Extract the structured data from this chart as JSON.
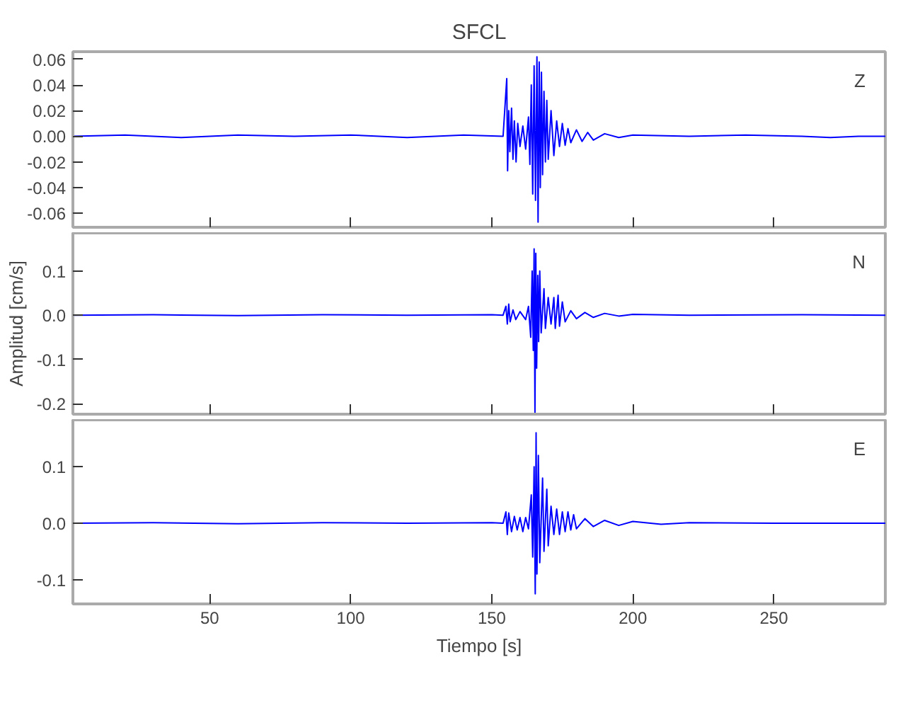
{
  "chart_data": [
    {
      "type": "line",
      "title": "SFCL",
      "annotations": [
        "Z"
      ],
      "tick_labels": "y",
      "grid": false,
      "color": "#0000ff",
      "xlim": [
        1.5,
        289.5
      ],
      "xticks": [
        50,
        100,
        150,
        200,
        250
      ],
      "ylim": [
        -0.071,
        0.066
      ],
      "yticks": [
        {
          "value": -0.06,
          "label": "-0.06"
        },
        {
          "value": -0.04,
          "label": "-0.04"
        },
        {
          "value": -0.02,
          "label": "-0.02"
        },
        {
          "value": 0,
          "label": "0.00"
        },
        {
          "value": 0.02,
          "label": "0.02"
        },
        {
          "value": 0.04,
          "label": "0.04"
        },
        {
          "value": 0.06,
          "label": "0.06"
        }
      ],
      "x": [
        1.5,
        20,
        40,
        60,
        80,
        100,
        120,
        140,
        154,
        155.3,
        155.6,
        156,
        156.4,
        157,
        157.5,
        158,
        158.6,
        159.2,
        160,
        161,
        162,
        163,
        163.5,
        164,
        164.5,
        165,
        165.5,
        166,
        166.4,
        166.8,
        167.2,
        167.6,
        168,
        168.5,
        169,
        169.5,
        170,
        171,
        172,
        173,
        174,
        175,
        176,
        177,
        178,
        180,
        182,
        184,
        186,
        190,
        195,
        200,
        220,
        240,
        260,
        270,
        280,
        289.5
      ],
      "values": [
        0,
        0.001,
        -0.001,
        0.001,
        0,
        0.001,
        -0.001,
        0.001,
        0,
        0.045,
        -0.027,
        0.02,
        -0.012,
        0.022,
        -0.018,
        0.012,
        -0.02,
        0.01,
        -0.008,
        0.008,
        -0.01,
        0.015,
        -0.022,
        0.04,
        -0.045,
        0.055,
        -0.05,
        0.062,
        -0.067,
        0.058,
        -0.04,
        0.05,
        -0.03,
        0.035,
        -0.02,
        0.028,
        -0.018,
        0.02,
        -0.015,
        0.012,
        -0.008,
        0.01,
        -0.007,
        0.006,
        -0.005,
        0.005,
        -0.004,
        0.003,
        -0.003,
        0.002,
        -0.001,
        0.001,
        0,
        0.001,
        0,
        -0.001,
        0,
        0
      ]
    },
    {
      "type": "line",
      "ylabel": "Amplitud [cm/s]",
      "annotations": [
        "N"
      ],
      "tick_labels": "y",
      "grid": false,
      "color": "#0000ff",
      "xlim": [
        1.5,
        289.5
      ],
      "xticks": [
        50,
        100,
        150,
        200,
        250
      ],
      "ylim": [
        -0.224,
        0.186
      ],
      "yticks": [
        {
          "value": -0.2,
          "label": "-0.2"
        },
        {
          "value": -0.1,
          "label": "-0.1"
        },
        {
          "value": 0,
          "label": "0.0"
        },
        {
          "value": 0.1,
          "label": "0.1"
        }
      ],
      "x": [
        1.5,
        30,
        60,
        90,
        120,
        150,
        154,
        155,
        155.5,
        156,
        156.5,
        157.5,
        158.5,
        160,
        162,
        163,
        163.8,
        164.3,
        164.7,
        165,
        165.3,
        165.6,
        165.9,
        166.3,
        166.6,
        167,
        167.5,
        168.5,
        169,
        170,
        171,
        172,
        172.5,
        173.5,
        174,
        175,
        176,
        178,
        180,
        183,
        186,
        190,
        195,
        200,
        220,
        260,
        289.5
      ],
      "values": [
        0,
        0.001,
        -0.001,
        0.001,
        0,
        0.001,
        0,
        0.02,
        -0.02,
        0.025,
        -0.015,
        0.012,
        -0.01,
        0.008,
        -0.01,
        0.02,
        -0.05,
        0.1,
        -0.08,
        0.15,
        -0.22,
        0.14,
        -0.12,
        0.09,
        -0.06,
        0.1,
        -0.04,
        0.06,
        -0.03,
        0.04,
        -0.02,
        0.04,
        -0.03,
        0.045,
        -0.025,
        0.03,
        -0.015,
        0.01,
        -0.008,
        0.006,
        -0.005,
        0.004,
        -0.002,
        0.002,
        0,
        0.001,
        0
      ]
    },
    {
      "type": "line",
      "xlabel": "Tiempo [s]",
      "annotations": [
        "E"
      ],
      "grid": false,
      "color": "#0000ff",
      "xlim": [
        1.5,
        289.5
      ],
      "xticks": [
        50,
        100,
        150,
        200,
        250
      ],
      "ylim": [
        -0.143,
        0.183
      ],
      "yticks": [
        {
          "value": -0.1,
          "label": "-0.1"
        },
        {
          "value": 0,
          "label": "0.0"
        },
        {
          "value": 0.1,
          "label": "0.1"
        }
      ],
      "x": [
        1.5,
        30,
        60,
        90,
        120,
        150,
        154,
        155,
        155.5,
        156,
        157,
        158,
        159,
        160,
        161,
        162,
        163,
        164,
        164.5,
        165,
        165.4,
        165.7,
        166,
        166.5,
        167,
        168,
        168.5,
        169.5,
        170,
        171,
        172,
        173,
        174,
        175,
        176,
        177,
        178,
        179,
        180,
        183,
        186,
        190,
        195,
        200,
        210,
        220,
        250,
        289.5
      ],
      "values": [
        0,
        0.001,
        -0.001,
        0.001,
        0,
        0.001,
        0,
        0.02,
        -0.02,
        0.018,
        -0.015,
        0.012,
        -0.012,
        0.01,
        -0.015,
        0.01,
        -0.01,
        0.05,
        -0.06,
        0.1,
        -0.125,
        0.16,
        -0.09,
        0.12,
        -0.07,
        0.08,
        -0.05,
        0.06,
        -0.04,
        0.03,
        -0.02,
        0.025,
        -0.02,
        0.02,
        -0.015,
        0.02,
        -0.012,
        0.015,
        -0.01,
        0.008,
        -0.006,
        0.005,
        -0.004,
        0.003,
        -0.002,
        0.001,
        0,
        0
      ]
    }
  ]
}
